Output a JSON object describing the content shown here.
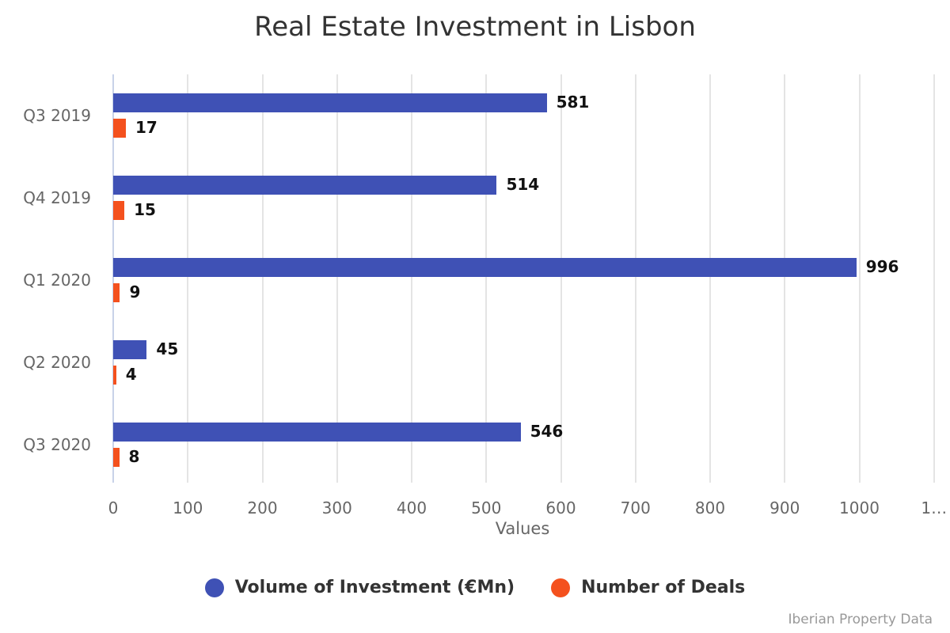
{
  "title": "Real Estate Investment in Lisbon",
  "credit": "Iberian Property Data",
  "colors": {
    "volume": "#3f51b5",
    "deals": "#f4511e"
  },
  "axis": {
    "xlabel": "Values",
    "ticks": [
      "0",
      "100",
      "200",
      "300",
      "400",
      "500",
      "600",
      "700",
      "800",
      "900",
      "1000",
      "1…"
    ]
  },
  "legend": [
    {
      "label": "Volume of Investment (€Mn)",
      "color": "#3f51b5"
    },
    {
      "label": "Number of Deals",
      "color": "#f4511e"
    }
  ],
  "chart_data": {
    "type": "bar",
    "orientation": "horizontal",
    "title": "Real Estate Investment in Lisbon",
    "categories": [
      "Q3 2019",
      "Q4 2019",
      "Q1 2020",
      "Q2 2020",
      "Q3 2020"
    ],
    "series": [
      {
        "name": "Volume of Investment (€Mn)",
        "color": "#3f51b5",
        "values": [
          581,
          514,
          996,
          45,
          546
        ]
      },
      {
        "name": "Number of Deals",
        "color": "#f4511e",
        "values": [
          17,
          15,
          9,
          4,
          8
        ]
      }
    ],
    "xlabel": "Values",
    "ylabel": "",
    "xlim": [
      0,
      1100
    ],
    "grid": true,
    "legend_position": "bottom",
    "data_labels": true
  }
}
